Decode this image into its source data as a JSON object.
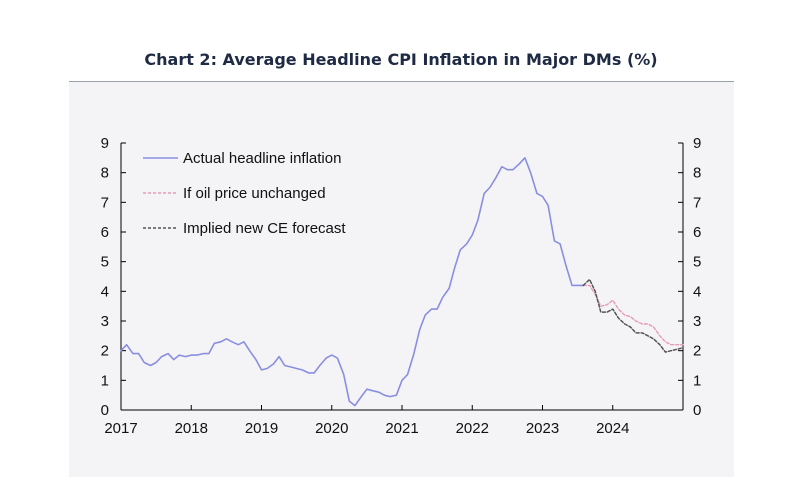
{
  "chart_data": {
    "type": "line",
    "title": "Chart 2: Average Headline CPI Inflation in Major DMs (%)",
    "xlabel": "",
    "ylabel": "",
    "xlim": [
      2017,
      2025
    ],
    "ylim": [
      0,
      9
    ],
    "yticks": [
      0,
      1,
      2,
      3,
      4,
      5,
      6,
      7,
      8,
      9
    ],
    "xticks": [
      "2017",
      "2018",
      "2019",
      "2020",
      "2021",
      "2022",
      "2023",
      "2024"
    ],
    "legend_position": "top-left",
    "colors": {
      "actual": "#8a8ee0",
      "oil_unchanged": "#e79ab9",
      "ce_forecast": "#555555",
      "axis": "#000000",
      "panel": "#f4f4f6",
      "title": "#1f2a44"
    },
    "series": [
      {
        "name": "Actual headline inflation",
        "style": "solid",
        "x": [
          2017.0,
          2017.08,
          2017.17,
          2017.25,
          2017.33,
          2017.42,
          2017.5,
          2017.58,
          2017.67,
          2017.75,
          2017.83,
          2017.92,
          2018.0,
          2018.08,
          2018.17,
          2018.25,
          2018.33,
          2018.42,
          2018.5,
          2018.58,
          2018.67,
          2018.75,
          2018.83,
          2018.92,
          2019.0,
          2019.08,
          2019.17,
          2019.25,
          2019.33,
          2019.42,
          2019.5,
          2019.58,
          2019.67,
          2019.75,
          2019.83,
          2019.92,
          2020.0,
          2020.08,
          2020.17,
          2020.25,
          2020.33,
          2020.42,
          2020.5,
          2020.58,
          2020.67,
          2020.75,
          2020.83,
          2020.92,
          2021.0,
          2021.08,
          2021.17,
          2021.25,
          2021.33,
          2021.42,
          2021.5,
          2021.58,
          2021.67,
          2021.75,
          2021.83,
          2021.92,
          2022.0,
          2022.08,
          2022.17,
          2022.25,
          2022.33,
          2022.42,
          2022.5,
          2022.58,
          2022.67,
          2022.75,
          2022.83,
          2022.92,
          2023.0,
          2023.08,
          2023.17,
          2023.25,
          2023.33,
          2023.42,
          2023.5,
          2023.58
        ],
        "values": [
          2.0,
          2.2,
          1.9,
          1.9,
          1.6,
          1.5,
          1.6,
          1.8,
          1.9,
          1.7,
          1.85,
          1.8,
          1.85,
          1.85,
          1.9,
          1.9,
          2.25,
          2.3,
          2.4,
          2.3,
          2.2,
          2.3,
          2.0,
          1.7,
          1.35,
          1.4,
          1.55,
          1.8,
          1.5,
          1.45,
          1.4,
          1.35,
          1.25,
          1.25,
          1.5,
          1.75,
          1.85,
          1.75,
          1.2,
          0.3,
          0.15,
          0.45,
          0.7,
          0.65,
          0.6,
          0.5,
          0.45,
          0.5,
          1.0,
          1.2,
          1.9,
          2.7,
          3.2,
          3.4,
          3.4,
          3.8,
          4.1,
          4.8,
          5.4,
          5.6,
          5.9,
          6.4,
          7.3,
          7.5,
          7.8,
          8.2,
          8.1,
          8.1,
          8.3,
          8.5,
          8.0,
          7.3,
          7.2,
          6.9,
          5.7,
          5.6,
          4.9,
          4.2,
          4.2,
          4.2
        ]
      },
      {
        "name": "If oil price unchanged",
        "style": "dashed",
        "x": [
          2023.58,
          2023.67,
          2023.75,
          2023.83,
          2023.92,
          2024.0,
          2024.08,
          2024.17,
          2024.25,
          2024.33,
          2024.42,
          2024.5,
          2024.58,
          2024.67,
          2024.75,
          2024.83,
          2024.92,
          2025.0
        ],
        "values": [
          4.2,
          4.2,
          3.9,
          3.5,
          3.55,
          3.7,
          3.4,
          3.2,
          3.15,
          3.0,
          2.9,
          2.9,
          2.8,
          2.5,
          2.3,
          2.2,
          2.2,
          2.2
        ]
      },
      {
        "name": "Implied new CE forecast",
        "style": "dashed",
        "x": [
          2023.58,
          2023.67,
          2023.75,
          2023.83,
          2023.92,
          2024.0,
          2024.08,
          2024.17,
          2024.25,
          2024.33,
          2024.42,
          2024.5,
          2024.58,
          2024.67,
          2024.75,
          2024.83,
          2024.92,
          2025.0
        ],
        "values": [
          4.2,
          4.4,
          4.0,
          3.3,
          3.3,
          3.4,
          3.1,
          2.9,
          2.8,
          2.6,
          2.6,
          2.5,
          2.4,
          2.2,
          1.95,
          2.0,
          2.05,
          2.1
        ]
      }
    ]
  }
}
